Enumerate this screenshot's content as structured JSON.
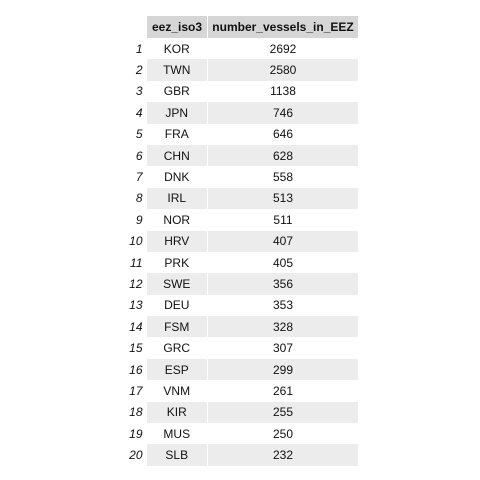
{
  "table": {
    "columns": [
      "eez_iso3",
      "number_vessels_in_EEZ"
    ],
    "rows": [
      {
        "index": "1",
        "eez_iso3": "KOR",
        "number_vessels_in_EEZ": "2692"
      },
      {
        "index": "2",
        "eez_iso3": "TWN",
        "number_vessels_in_EEZ": "2580"
      },
      {
        "index": "3",
        "eez_iso3": "GBR",
        "number_vessels_in_EEZ": "1138"
      },
      {
        "index": "4",
        "eez_iso3": "JPN",
        "number_vessels_in_EEZ": "746"
      },
      {
        "index": "5",
        "eez_iso3": "FRA",
        "number_vessels_in_EEZ": "646"
      },
      {
        "index": "6",
        "eez_iso3": "CHN",
        "number_vessels_in_EEZ": "628"
      },
      {
        "index": "7",
        "eez_iso3": "DNK",
        "number_vessels_in_EEZ": "558"
      },
      {
        "index": "8",
        "eez_iso3": "IRL",
        "number_vessels_in_EEZ": "513"
      },
      {
        "index": "9",
        "eez_iso3": "NOR",
        "number_vessels_in_EEZ": "511"
      },
      {
        "index": "10",
        "eez_iso3": "HRV",
        "number_vessels_in_EEZ": "407"
      },
      {
        "index": "11",
        "eez_iso3": "PRK",
        "number_vessels_in_EEZ": "405"
      },
      {
        "index": "12",
        "eez_iso3": "SWE",
        "number_vessels_in_EEZ": "356"
      },
      {
        "index": "13",
        "eez_iso3": "DEU",
        "number_vessels_in_EEZ": "353"
      },
      {
        "index": "14",
        "eez_iso3": "FSM",
        "number_vessels_in_EEZ": "328"
      },
      {
        "index": "15",
        "eez_iso3": "GRC",
        "number_vessels_in_EEZ": "307"
      },
      {
        "index": "16",
        "eez_iso3": "ESP",
        "number_vessels_in_EEZ": "299"
      },
      {
        "index": "17",
        "eez_iso3": "VNM",
        "number_vessels_in_EEZ": "261"
      },
      {
        "index": "18",
        "eez_iso3": "KIR",
        "number_vessels_in_EEZ": "255"
      },
      {
        "index": "19",
        "eez_iso3": "MUS",
        "number_vessels_in_EEZ": "250"
      },
      {
        "index": "20",
        "eez_iso3": "SLB",
        "number_vessels_in_EEZ": "232"
      }
    ]
  }
}
